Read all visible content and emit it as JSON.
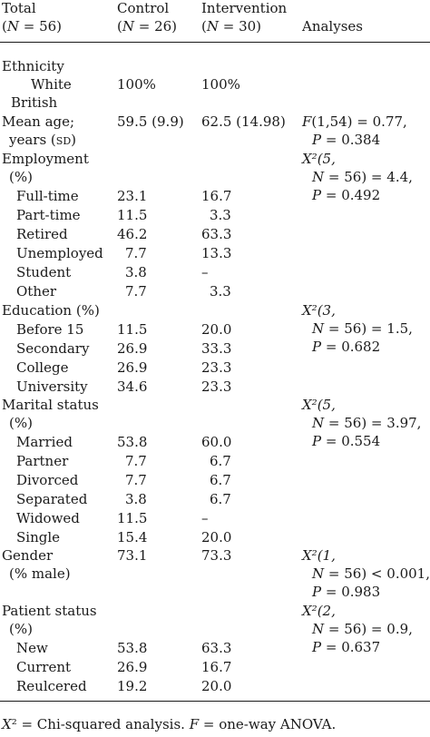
{
  "header": {
    "col1_line1": "Total",
    "col1_line2_prefix": "(",
    "col1_n": "N",
    "col1_line2_rest": " = 56)",
    "col2_line1": "Control",
    "col2_prefix": "(",
    "col2_n": "N",
    "col2_rest": " = 26)",
    "col3_line1": "Intervention",
    "col3_prefix": "(",
    "col3_n": "N",
    "col3_rest": " = 30)",
    "col4": "Analyses"
  },
  "rows": {
    "ethnicity": "Ethnicity",
    "white": "White",
    "british": "British",
    "white_control": "100%",
    "white_intervention": "100%",
    "mean_age": "Mean age;",
    "years_prefix": "years (",
    "years_sd": "sd",
    "years_suffix": ")",
    "age_control": "59.5 (9.9)",
    "age_intervention": "62.5 (14.98)",
    "age_an1_f": "F",
    "age_an1_rest": "(1,54) = 0.77,",
    "age_an2_p": "P",
    "age_an2_rest": " = 0.384",
    "employment": "Employment",
    "employment_pct": "(%)",
    "emp_an1": "X²(5,",
    "emp_an2_n": "N",
    "emp_an2_rest": " = 56) = 4.4,",
    "emp_an3_p": "P",
    "emp_an3_rest": " = 0.492",
    "fulltime": "Full-time",
    "fulltime_c": "23.1",
    "fulltime_i": "16.7",
    "parttime": "Part-time",
    "parttime_c": "11.5",
    "parttime_i": "3.3",
    "retired": "Retired",
    "retired_c": "46.2",
    "retired_i": "63.3",
    "unemployed": "Unemployed",
    "unemployed_c": "7.7",
    "unemployed_i": "13.3",
    "student": "Student",
    "student_c": "3.8",
    "student_i": "–",
    "other": "Other",
    "other_c": "7.7",
    "other_i": "3.3",
    "education": "Education (%)",
    "edu_an1": "X²(3,",
    "edu_an2_n": "N",
    "edu_an2_rest": " = 56) = 1.5,",
    "edu_an3_p": "P",
    "edu_an3_rest": " = 0.682",
    "before15": "Before 15",
    "before15_c": "11.5",
    "before15_i": "20.0",
    "secondary": "Secondary",
    "secondary_c": "26.9",
    "secondary_i": "33.3",
    "college": "College",
    "college_c": "26.9",
    "college_i": "23.3",
    "university": "University",
    "university_c": "34.6",
    "university_i": "23.3",
    "marital": "Marital status",
    "marital_pct": "(%)",
    "mar_an1": "X²(5,",
    "mar_an2_n": "N",
    "mar_an2_rest": " = 56) = 3.97,",
    "mar_an3_p": "P",
    "mar_an3_rest": " = 0.554",
    "married": "Married",
    "married_c": "53.8",
    "married_i": "60.0",
    "partner": "Partner",
    "partner_c": "7.7",
    "partner_i": "6.7",
    "divorced": "Divorced",
    "divorced_c": "7.7",
    "divorced_i": "6.7",
    "separated": "Separated",
    "separated_c": "3.8",
    "separated_i": "6.7",
    "widowed": "Widowed",
    "widowed_c": "11.5",
    "widowed_i": "–",
    "single": "Single",
    "single_c": "15.4",
    "single_i": "20.0",
    "gender": "Gender",
    "gender_male": "(% male)",
    "gender_c": "73.1",
    "gender_i": "73.3",
    "gen_an1": "X²(1,",
    "gen_an2_n": "N",
    "gen_an2_rest": " = 56) < 0.001,",
    "gen_an3_p": "P",
    "gen_an3_rest": " = 0.983",
    "patient_status": "Patient status",
    "patient_pct": "(%)",
    "pat_an1": "X²(2,",
    "pat_an2_n": "N",
    "pat_an2_rest": " = 56) = 0.9,",
    "pat_an3_p": "P",
    "pat_an3_rest": " = 0.637",
    "new": "New",
    "new_c": "53.8",
    "new_i": "63.3",
    "current": "Current",
    "current_c": "26.9",
    "current_i": "16.7",
    "reulcered": "Reulcered",
    "reulcered_c": "19.2",
    "reulcered_i": "20.0"
  },
  "footnote": {
    "x2": "X",
    "x2_rest": "² = Chi-squared analysis. ",
    "f": "F",
    "f_rest": " = one-way ANOVA."
  }
}
